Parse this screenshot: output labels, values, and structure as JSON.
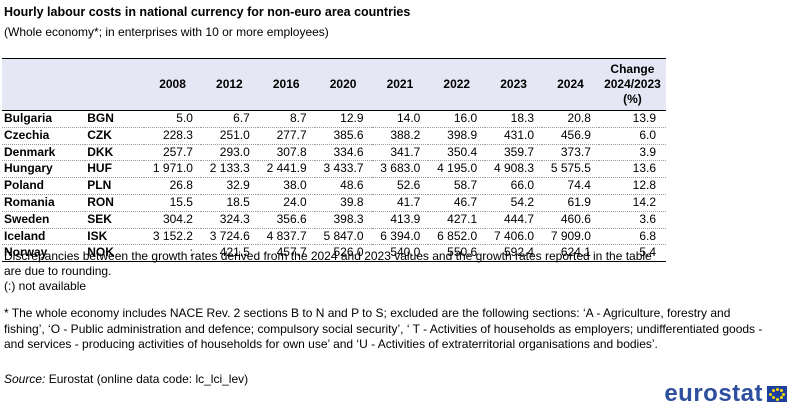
{
  "title": "Hourly labour costs in national currency for non-euro area countries",
  "subtitle": "(Whole economy*; in enterprises with 10 or more employees)",
  "columns": [
    "2008",
    "2012",
    "2016",
    "2020",
    "2021",
    "2022",
    "2023",
    "2024"
  ],
  "change_header": {
    "line1": "Change",
    "line2": "2024/2023",
    "line3": "(%)"
  },
  "rows": [
    {
      "country": "Bulgaria",
      "code": "BGN",
      "values": [
        "5.0",
        "6.7",
        "8.7",
        "12.9",
        "14.0",
        "16.0",
        "18.3",
        "20.8"
      ],
      "change": "13.9"
    },
    {
      "country": "Czechia",
      "code": "CZK",
      "values": [
        "228.3",
        "251.0",
        "277.7",
        "385.6",
        "388.2",
        "398.9",
        "431.0",
        "456.9"
      ],
      "change": "6.0"
    },
    {
      "country": "Denmark",
      "code": "DKK",
      "values": [
        "257.7",
        "293.0",
        "307.8",
        "334.6",
        "341.7",
        "350.4",
        "359.7",
        "373.7"
      ],
      "change": "3.9"
    },
    {
      "country": "Hungary",
      "code": "HUF",
      "values": [
        "1 971.0",
        "2 133.3",
        "2 441.9",
        "3 433.7",
        "3 683.0",
        "4 195.0",
        "4 908.3",
        "5 575.5"
      ],
      "change": "13.6"
    },
    {
      "country": "Poland",
      "code": "PLN",
      "values": [
        "26.8",
        "32.9",
        "38.0",
        "48.6",
        "52.6",
        "58.7",
        "66.0",
        "74.4"
      ],
      "change": "12.8"
    },
    {
      "country": "Romania",
      "code": "RON",
      "values": [
        "15.5",
        "18.5",
        "24.0",
        "39.8",
        "41.7",
        "46.7",
        "54.2",
        "61.9"
      ],
      "change": "14.2"
    },
    {
      "country": "Sweden",
      "code": "SEK",
      "values": [
        "304.2",
        "324.3",
        "356.6",
        "398.3",
        "413.9",
        "427.1",
        "444.7",
        "460.6"
      ],
      "change": "3.6"
    },
    {
      "country": "Iceland",
      "code": "ISK",
      "values": [
        "3 152.2",
        "3 724.6",
        "4 837.7",
        "5 847.0",
        "6 394.0",
        "6 852.0",
        "7 406.0",
        "7 909.0"
      ],
      "change": "6.8"
    },
    {
      "country": "Norway",
      "code": "NOK",
      "values": [
        ":",
        "421.5",
        "457.7",
        "526.0",
        "540.0",
        "550.6",
        "592.4",
        "624.1"
      ],
      "change": "5.4"
    }
  ],
  "notes": {
    "discrepancies": "Discrepancies between the growth rates derived from the 2024 and 2023 values and the growth rates reported in the table are due to rounding.",
    "not_available": "(:) not available",
    "whole_economy": "* The whole economy includes NACE Rev. 2 sections B to N and P to S; excluded are the following sections: ‘A - Agriculture, forestry and fishing’, ‘O - Public administration and defence; compulsory social security’, ‘ T - Activities of households as employers; undifferentiated goods - and services - producing activities of households for own use’ and ‘U - Activities of extraterritorial organisations and bodies’."
  },
  "source": {
    "label": "Source:",
    "text": "Eurostat (online data code: lc_lci_lev)"
  },
  "logo": {
    "text": "eurostat",
    "color": "#2d4f9e"
  },
  "colors": {
    "header_bg": "#e6e7f5"
  }
}
